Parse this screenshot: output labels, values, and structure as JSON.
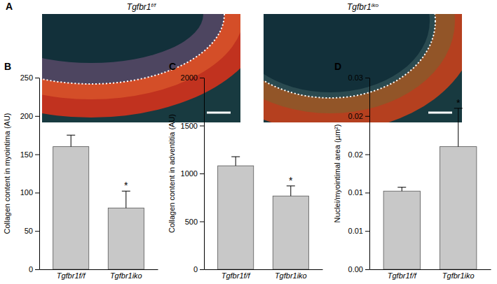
{
  "images": {
    "label": "A",
    "titles": [
      {
        "name": "Tgfbr1",
        "superscript": "f/f"
      },
      {
        "name": "Tgfbr1",
        "superscript": "iko"
      }
    ]
  },
  "chart_data": [
    {
      "type": "bar",
      "title": "B",
      "y_label": "Collagen content in myointima (AU)",
      "categories": [
        "Tgfbr1f/f",
        "Tgfbr1iko"
      ],
      "values": [
        160,
        80
      ],
      "errors": [
        15,
        22
      ],
      "color": "#c8c8c8",
      "ylim": [
        0,
        250
      ],
      "yticks": [
        0,
        50,
        100,
        150,
        200,
        250
      ],
      "annotations": [
        {
          "text": "*",
          "x": 1
        }
      ]
    },
    {
      "type": "bar",
      "title": "C",
      "y_label": "Collagen content in adventitia (AU)",
      "categories": [
        "Tgfbr1f/f",
        "Tgfbr1iko"
      ],
      "values": [
        1080,
        765
      ],
      "errors": [
        95,
        105
      ],
      "color": "#c8c8c8",
      "ylim": [
        0,
        2000
      ],
      "yticks": [
        0,
        500,
        1000,
        1500,
        2000
      ],
      "annotations": [
        {
          "text": "*",
          "x": 1
        }
      ]
    },
    {
      "type": "bar",
      "title": "D",
      "y_label": "Nuclei/myointimal area (µm²)",
      "categories": [
        "Tgfbr1f/f",
        "Tgfbr1iko"
      ],
      "values": [
        0.0102,
        0.016
      ],
      "errors": [
        0.0005,
        0.005
      ],
      "color": "#c8c8c8",
      "ylim": [
        0,
        0.025
      ],
      "yticks": [
        {
          "value": 0,
          "label": "0.00"
        },
        {
          "value": 0.005,
          "label": "0.01"
        },
        {
          "value": 0.01,
          "label": "0.01"
        },
        {
          "value": 0.015,
          "label": "0.02"
        },
        {
          "value": 0.02,
          "label": "0.02"
        },
        {
          "value": 0.025,
          "label": "0.03"
        }
      ],
      "annotations": [
        {
          "text": "*",
          "x": 1
        }
      ]
    }
  ]
}
